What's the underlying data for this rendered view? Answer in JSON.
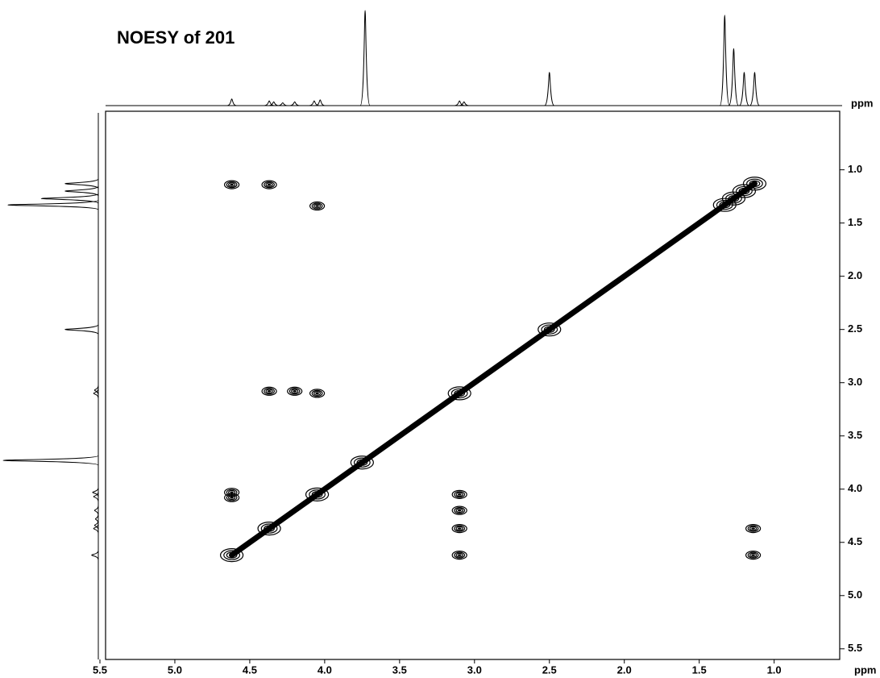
{
  "chart_data": {
    "type": "contour",
    "title": "NOESY of 201",
    "x_label": "ppm",
    "y_label": "ppm",
    "xlim": [
      5.5,
      0.6
    ],
    "ylim": [
      0.45,
      5.6
    ],
    "xticks": [
      5.5,
      {
        "value": 5,
        "label": "5.0"
      },
      4.5,
      {
        "value": 4,
        "label": "4.0"
      },
      3.5,
      {
        "value": 3,
        "label": "3.0"
      },
      2.5,
      {
        "value": 2,
        "label": "2.0"
      },
      1.5,
      {
        "value": 1,
        "label": "1.0"
      }
    ],
    "yticks": [
      {
        "value": 1,
        "label": "1.0"
      },
      1.5,
      {
        "value": 2,
        "label": "2.0"
      },
      2.5,
      {
        "value": 3,
        "label": "3.0"
      },
      3.5,
      {
        "value": 4,
        "label": "4.0"
      },
      4.5,
      {
        "value": 5,
        "label": "5.0"
      },
      5.5
    ],
    "projection": {
      "x": [
        4.62,
        4.37,
        4.34,
        4.28,
        4.2,
        4.07,
        4.03,
        3.73,
        3.1,
        3.07,
        2.5,
        1.33,
        1.27,
        1.2,
        1.13
      ],
      "values": [
        7,
        5,
        4,
        3,
        4,
        5,
        6,
        100,
        5,
        4,
        35,
        95,
        60,
        35,
        35
      ]
    },
    "diagonal": {
      "x": [
        4.62,
        4.37,
        4.05,
        3.75,
        3.1,
        2.5,
        1.33,
        1.27,
        1.2,
        1.13
      ],
      "y": [
        4.62,
        4.37,
        4.05,
        3.75,
        3.1,
        2.5,
        1.33,
        1.27,
        1.2,
        1.13
      ]
    },
    "cross_peaks": {
      "x": [
        4.62,
        4.37,
        4.05,
        4.37,
        4.05,
        4.2,
        4.62,
        4.62,
        3.1,
        3.1,
        3.1,
        3.1,
        1.14,
        1.14
      ],
      "y": [
        1.14,
        1.14,
        1.34,
        3.08,
        3.1,
        3.08,
        4.03,
        4.08,
        4.05,
        4.2,
        4.37,
        4.62,
        4.37,
        4.62
      ]
    },
    "color": "#000000"
  }
}
